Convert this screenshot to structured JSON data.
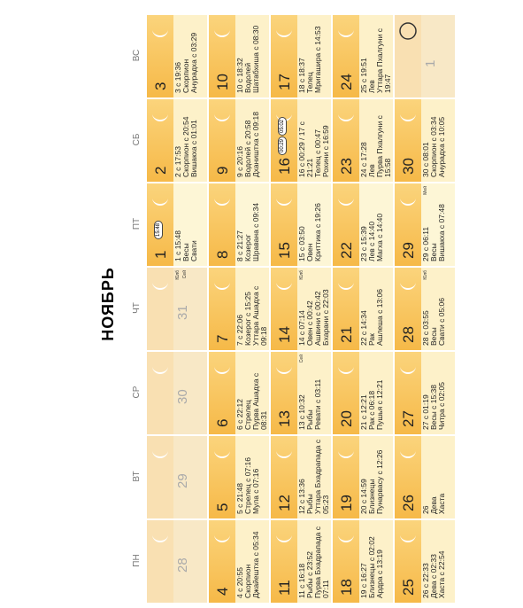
{
  "title": "НОЯБРЬ",
  "weekdays": [
    "ПН",
    "ВТ",
    "СР",
    "ЧТ",
    "ПТ",
    "СБ",
    "ВС"
  ],
  "weeks": [
    [
      {
        "day": "28",
        "muted": true
      },
      {
        "day": "29",
        "muted": true
      },
      {
        "day": "30",
        "muted": true
      },
      {
        "day": "31",
        "muted": true,
        "notes": [
          "Юлб",
          "Сей"
        ]
      },
      {
        "day": "1",
        "badges": [
          "15:48"
        ],
        "lines": [
          "1 с 15:48",
          "Весы",
          "Свати"
        ]
      },
      {
        "day": "2",
        "lines": [
          "2 с 17:53",
          "Скорпион с 20:54",
          "Вишакха с 01:01"
        ]
      },
      {
        "day": "3",
        "lines": [
          "3 с 19:36",
          "Скорпион",
          "Анурадха с 03:29"
        ]
      }
    ],
    [
      {
        "day": "4",
        "lines": [
          "4 с 20:55",
          "Скорпион",
          "Джайештха с 05:34"
        ]
      },
      {
        "day": "5",
        "lines": [
          "5 с 21:48",
          "Стрелец с 07:16",
          "Мула с 07:16"
        ]
      },
      {
        "day": "6",
        "lines": [
          "6 с 22:12",
          "Стрелец",
          "Пурва Ашадха с 08:31"
        ]
      },
      {
        "day": "7",
        "lines": [
          "7 с 22:06",
          "Козерог с 15:25",
          "Уттара Ашадха с 09:18"
        ]
      },
      {
        "day": "8",
        "lines": [
          "8 с 21:27",
          "Козерог",
          "Шравана с 09:34"
        ]
      },
      {
        "day": "9",
        "lines": [
          "9 с 20:16",
          "Водолей с 20:58",
          "Дхаништха с 09:18"
        ]
      },
      {
        "day": "10",
        "lines": [
          "10 с 18:32",
          "Водолей",
          "Шатабхиша с 08:30"
        ]
      }
    ],
    [
      {
        "day": "11",
        "lines": [
          "11 с 16:18",
          "Рыбы с 23:52",
          "Пурва Бхадрапада с 07:11"
        ]
      },
      {
        "day": "12",
        "lines": [
          "12 с 13:36",
          "Рыбы",
          "Уттара Бхадрапада с 05:23"
        ]
      },
      {
        "day": "13",
        "lines": [
          "13 с 10:32",
          "Рыбы",
          "Ревати с 03:11"
        ],
        "notes": [
          "Сей"
        ]
      },
      {
        "day": "14",
        "lines": [
          "14 с 07:14",
          "Овен с 00:42",
          "Ашвини с 00:42",
          "Бхарани с 22:03"
        ],
        "notes": [
          "Юлб"
        ]
      },
      {
        "day": "15",
        "lines": [
          "15 с 03:50",
          "Овен",
          "Криттика с 19:26"
        ]
      },
      {
        "day": "16",
        "badges": [
          "00:29",
          "05:02"
        ],
        "lines": [
          "16 с 00:29 / 17 с 21:21",
          "Телец с 00:47",
          "Рохини с 16:59"
        ]
      },
      {
        "day": "17",
        "lines": [
          "18 с 18:37",
          "Телец",
          "Мригашира с 14:53"
        ]
      }
    ],
    [
      {
        "day": "18",
        "lines": [
          "19 с 16:27",
          "Близнецы с 02:02",
          "Ардра с 13:19"
        ]
      },
      {
        "day": "19",
        "lines": [
          "20 с 14:59",
          "Близнецы",
          "Пунарвасу с 12:26"
        ]
      },
      {
        "day": "20",
        "lines": [
          "21 с 12:21",
          "Рак с 06:18",
          "Пушья с 12:21"
        ]
      },
      {
        "day": "21",
        "lines": [
          "22 с 14:34",
          "Рак",
          "Ашлеша с 13:06"
        ]
      },
      {
        "day": "22",
        "lines": [
          "23 с 15:39",
          "Лев с 14:40",
          "Магха с 14:40"
        ]
      },
      {
        "day": "23",
        "lines": [
          "24 с 17:28",
          "Лев",
          "Пурва Пхалгуни с 15:58"
        ]
      },
      {
        "day": "24",
        "lines": [
          "25 с 19:51",
          "Лев",
          "Уттара Пхалгуни с 19:47"
        ]
      }
    ],
    [
      {
        "day": "25",
        "lines": [
          "26 с 22:33",
          "Дева с 02:33",
          "Хаста с 22:54"
        ]
      },
      {
        "day": "26",
        "lines": [
          "26",
          "Дева",
          "Хаста"
        ]
      },
      {
        "day": "27",
        "lines": [
          "27 с 01:19",
          "Весы с 15:38",
          "Читра с 02:05"
        ]
      },
      {
        "day": "28",
        "lines": [
          "28 с 03:55",
          "Весы",
          "Свати с 05:06"
        ],
        "notes": [
          "Юлб"
        ]
      },
      {
        "day": "29",
        "lines": [
          "29 с 06:11",
          "Весы",
          "Вишакха с 07:48"
        ],
        "notes": [
          "Мей"
        ]
      },
      {
        "day": "30",
        "lines": [
          "30 с 08:01",
          "Скорпион с 03:34",
          "Анурадха с 10:05"
        ]
      },
      {
        "day": "1",
        "muted": true,
        "full": true
      }
    ]
  ]
}
